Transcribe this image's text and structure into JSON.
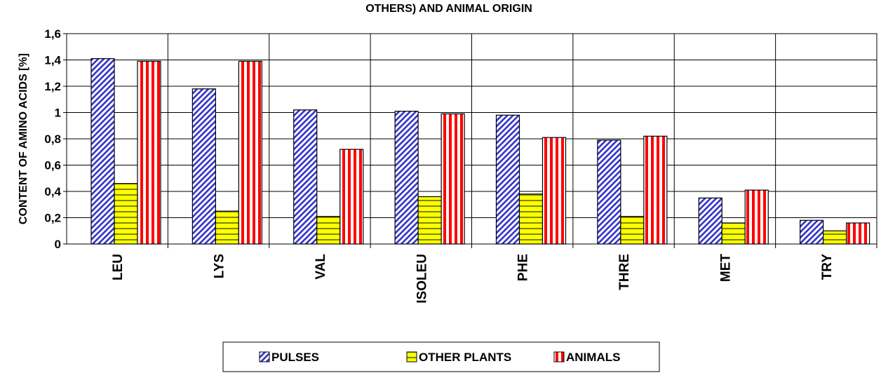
{
  "chart_data": {
    "type": "bar",
    "title": "OTHERS) AND ANIMAL ORIGIN",
    "y_label": "CONTENT OF AMINO ACIDS [%]",
    "categories": [
      "LEU",
      "LYS",
      "VAL",
      "ISOLEU",
      "PHE",
      "THRE",
      "MET",
      "TRY"
    ],
    "series": [
      {
        "name": "PULSES",
        "color": "#3333cc",
        "values": [
          1.41,
          1.18,
          1.02,
          1.01,
          0.98,
          0.79,
          0.35,
          0.18
        ]
      },
      {
        "name": "OTHER PLANTS",
        "color": "#ffff00",
        "values": [
          0.46,
          0.25,
          0.21,
          0.36,
          0.38,
          0.21,
          0.16,
          0.1
        ]
      },
      {
        "name": "ANIMALS",
        "color": "#ff0000",
        "values": [
          1.39,
          1.39,
          0.72,
          0.99,
          0.81,
          0.82,
          0.41,
          0.16
        ]
      }
    ],
    "ylim": [
      0,
      1.6
    ],
    "yticks": [
      0,
      {
        "value": 0.2,
        "label": "0,2"
      },
      {
        "value": 0.4,
        "label": "0,4"
      },
      {
        "value": 0.6,
        "label": "0,6"
      },
      {
        "value": 0.8,
        "label": "0,8"
      },
      1,
      {
        "value": 1.2,
        "label": "1,2"
      },
      {
        "value": 1.4,
        "label": "1,4"
      },
      {
        "value": 1.6,
        "label": "1,6"
      }
    ],
    "grid": true,
    "legend": "bottom"
  }
}
